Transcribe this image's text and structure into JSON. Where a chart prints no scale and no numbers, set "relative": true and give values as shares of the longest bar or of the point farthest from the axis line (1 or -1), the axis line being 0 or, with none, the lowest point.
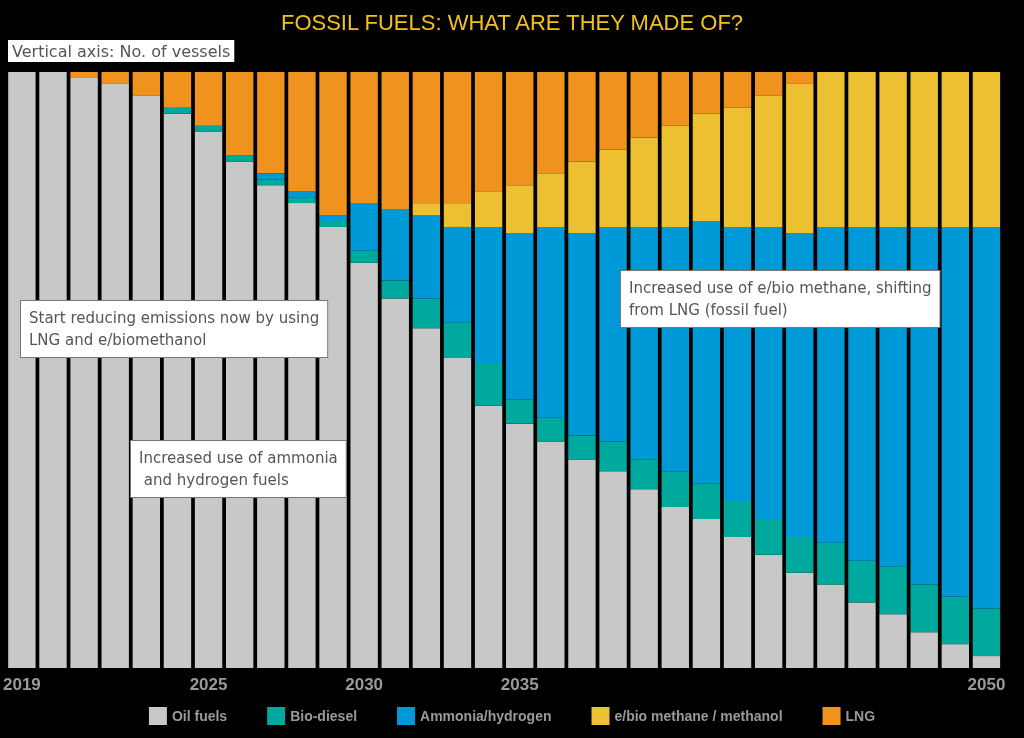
{
  "chart_data": {
    "type": "bar",
    "stacked": true,
    "relative": true,
    "title": "FOSSIL FUELS: WHAT ARE THEY MADE OF?",
    "ylabel": "Vertical axis: No. of vessels",
    "categories": [
      "2019",
      null,
      null,
      null,
      null,
      null,
      "2025",
      null,
      null,
      null,
      null,
      "2030",
      null,
      null,
      null,
      null,
      "2035",
      null,
      null,
      null,
      null,
      null,
      null,
      null,
      null,
      null,
      null,
      null,
      null,
      null,
      null,
      "2050"
    ],
    "series": [
      {
        "name": "Oil fuels",
        "color": "#c8c8c8",
        "values": [
          1,
          1,
          0.99,
          0.98,
          0.96,
          0.93,
          0.9,
          0.85,
          0.81,
          0.78,
          0.74,
          0.68,
          0.62,
          0.57,
          0.52,
          0.44,
          0.41,
          0.38,
          0.35,
          0.33,
          0.3,
          0.27,
          0.25,
          0.22,
          0.19,
          0.16,
          0.14,
          0.11,
          0.09,
          0.06,
          0.04,
          0.02
        ]
      },
      {
        "name": "Bio-diesel",
        "color": "#00a99d",
        "values": [
          0,
          0,
          0,
          0,
          0,
          0.01,
          0.01,
          0.01,
          0.01,
          0.01,
          0.01,
          0.02,
          0.03,
          0.05,
          0.06,
          0.07,
          0.04,
          0.04,
          0.04,
          0.05,
          0.05,
          0.06,
          0.06,
          0.06,
          0.06,
          0.06,
          0.07,
          0.07,
          0.08,
          0.08,
          0.08,
          0.08
        ]
      },
      {
        "name": "Ammonia/hydrogen",
        "color": "#0099d8",
        "values": [
          0,
          0,
          0,
          0,
          0,
          0,
          0,
          0,
          0.01,
          0.01,
          0.01,
          0.08,
          0.12,
          0.14,
          0.16,
          0.23,
          0.28,
          0.32,
          0.34,
          0.36,
          0.39,
          0.41,
          0.44,
          0.46,
          0.49,
          0.51,
          0.53,
          0.56,
          0.57,
          0.6,
          0.62,
          0.64
        ]
      },
      {
        "name": "e/bio methane / methanol",
        "color": "#ecc030",
        "values": [
          0,
          0,
          0,
          0,
          0,
          0,
          0,
          0,
          0,
          0,
          0,
          0,
          0,
          0.02,
          0.04,
          0.06,
          0.08,
          0.09,
          0.12,
          0.13,
          0.15,
          0.17,
          0.18,
          0.2,
          0.22,
          0.25,
          0.26,
          0.26,
          0.26,
          0.26,
          0.26,
          0.26
        ]
      },
      {
        "name": "LNG",
        "color": "#f0921e",
        "values": [
          0,
          0,
          0.01,
          0.02,
          0.04,
          0.06,
          0.09,
          0.14,
          0.17,
          0.2,
          0.24,
          0.22,
          0.23,
          0.22,
          0.22,
          0.2,
          0.19,
          0.17,
          0.15,
          0.13,
          0.11,
          0.09,
          0.07,
          0.06,
          0.04,
          0.02,
          0,
          0,
          0,
          0,
          0,
          0
        ]
      }
    ],
    "annotations": [
      "Start reducing emissions now by using\nLNG and e/biomethanol",
      "Increased use of e/bio methane, shifting\nfrom LNG (fossil fuel)",
      "Increased use of ammonia\n and hydrogen fuels"
    ],
    "legend": "bottom"
  }
}
